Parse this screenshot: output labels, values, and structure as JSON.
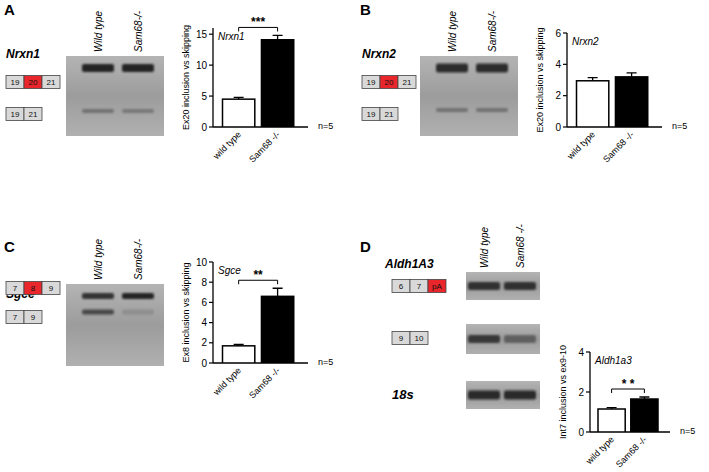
{
  "chart_data": [
    {
      "type": "bar",
      "title": "Nrxn1",
      "ylabel": "Ex20 inclusion vs skipping",
      "categories": [
        "wild type",
        "Sam68 -/-"
      ],
      "values": [
        4.5,
        14.1
      ],
      "errors": [
        0.3,
        0.7
      ],
      "colors": [
        "#ffffff",
        "#000000"
      ],
      "ylim": [
        0,
        16
      ],
      "yticks": [
        0,
        5,
        10,
        15
      ],
      "annotations": {
        "significance": "***",
        "sample_size": "n=5"
      }
    },
    {
      "type": "bar",
      "title": "Nrxn2",
      "ylabel": "Ex20 inclusion vs skipping",
      "categories": [
        "wild type",
        "Sam68 -/-"
      ],
      "values": [
        2.95,
        3.2
      ],
      "errors": [
        0.2,
        0.25
      ],
      "colors": [
        "#ffffff",
        "#000000"
      ],
      "ylim": [
        0,
        6
      ],
      "yticks": [
        0,
        2,
        4,
        6
      ],
      "annotations": {
        "sample_size": "n=5"
      }
    },
    {
      "type": "bar",
      "title": "Sgce",
      "ylabel": "Ex8 inclusion vs skipping",
      "categories": [
        "wild type",
        "Sam68 -/-"
      ],
      "values": [
        1.7,
        6.6
      ],
      "errors": [
        0.15,
        0.8
      ],
      "colors": [
        "#ffffff",
        "#000000"
      ],
      "ylim": [
        0,
        10
      ],
      "yticks": [
        0,
        2,
        4,
        6,
        8,
        10
      ],
      "annotations": {
        "significance": "**",
        "sample_size": "n=5"
      }
    },
    {
      "type": "bar",
      "title": "Aldh1a3",
      "ylabel": "Int7 inclusion vs ex9-10",
      "categories": [
        "wild type",
        "Sam68 -/-"
      ],
      "values": [
        1.15,
        1.65
      ],
      "errors": [
        0.07,
        0.1
      ],
      "colors": [
        "#ffffff",
        "#000000"
      ],
      "ylim": [
        0,
        4
      ],
      "yticks": [
        0,
        2,
        4
      ],
      "annotations": {
        "significance": "* *",
        "sample_size": "n=5"
      }
    }
  ],
  "panels": [
    {
      "letter": "A",
      "gene": "Nrxn1",
      "lanes": [
        "Wild type",
        "Sam68-/-"
      ],
      "isoforms": [
        [
          {
            "label": "19",
            "color": "#d9d9d9"
          },
          {
            "label": "20",
            "color": "#e8262b"
          },
          {
            "label": "21",
            "color": "#d9d9d9"
          }
        ],
        [
          {
            "label": "19",
            "color": "#d9d9d9"
          },
          {
            "label": "21",
            "color": "#d9d9d9"
          }
        ]
      ]
    },
    {
      "letter": "B",
      "gene": "Nrxn2",
      "lanes": [
        "Wild type",
        "Sam68-/-"
      ],
      "isoforms": [
        [
          {
            "label": "19",
            "color": "#d9d9d9"
          },
          {
            "label": "20",
            "color": "#e8262b"
          },
          {
            "label": "21",
            "color": "#d9d9d9"
          }
        ],
        [
          {
            "label": "19",
            "color": "#d9d9d9"
          },
          {
            "label": "21",
            "color": "#d9d9d9"
          }
        ]
      ]
    },
    {
      "letter": "C",
      "gene": "Sgce",
      "lanes": [
        "Wild type",
        "Sam68-/-"
      ],
      "isoforms": [
        [
          {
            "label": "7",
            "color": "#d9d9d9"
          },
          {
            "label": "8",
            "color": "#e8262b"
          },
          {
            "label": "9",
            "color": "#d9d9d9"
          }
        ],
        [
          {
            "label": "7",
            "color": "#d9d9d9"
          },
          {
            "label": "9",
            "color": "#d9d9d9"
          }
        ]
      ]
    },
    {
      "letter": "D",
      "gene": "Aldh1A3",
      "lanes": [
        "Wild type",
        "Sam68 -/-"
      ],
      "isoforms": [
        [
          {
            "label": "6",
            "color": "#d9d9d9"
          },
          {
            "label": "7",
            "color": "#d9d9d9"
          },
          {
            "label": "pA",
            "color": "#e8262b"
          }
        ],
        [
          {
            "label": "9",
            "color": "#d9d9d9"
          },
          {
            "label": "10",
            "color": "#d9d9d9"
          }
        ]
      ],
      "control": "18s"
    }
  ]
}
